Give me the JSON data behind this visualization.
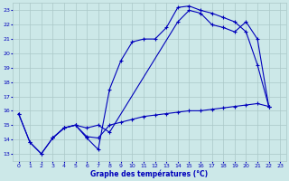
{
  "title": "Graphe des températures (°C)",
  "bg_color": "#cce8e8",
  "grid_color": "#aac8c8",
  "line_color": "#0000bb",
  "xlim": [
    -0.5,
    23.5
  ],
  "ylim": [
    12.5,
    23.5
  ],
  "xticks": [
    0,
    1,
    2,
    3,
    4,
    5,
    6,
    7,
    8,
    9,
    10,
    11,
    12,
    13,
    14,
    15,
    16,
    17,
    18,
    19,
    20,
    21,
    22,
    23
  ],
  "yticks": [
    13,
    14,
    15,
    16,
    17,
    18,
    19,
    20,
    21,
    22,
    23
  ],
  "curve1_x": [
    0,
    1,
    2,
    3,
    4,
    5,
    6,
    7,
    8,
    9,
    10,
    11,
    12,
    13,
    14,
    15,
    16,
    17,
    18,
    19,
    20,
    21,
    22
  ],
  "curve1_y": [
    15.8,
    13.8,
    13.0,
    14.1,
    14.8,
    15.0,
    14.1,
    13.3,
    17.5,
    19.5,
    20.8,
    21.0,
    21.0,
    21.8,
    23.2,
    23.3,
    23.0,
    22.8,
    22.5,
    22.2,
    21.5,
    19.2,
    16.3
  ],
  "curve2_x": [
    0,
    1,
    2,
    3,
    4,
    5,
    6,
    7,
    8,
    9,
    10,
    11,
    12,
    13,
    14,
    15,
    16,
    17,
    18,
    19,
    20,
    21,
    22
  ],
  "curve2_y": [
    15.8,
    13.8,
    13.0,
    14.1,
    14.8,
    15.0,
    14.2,
    14.1,
    15.0,
    15.2,
    15.4,
    15.6,
    15.7,
    15.8,
    15.9,
    16.0,
    16.0,
    16.1,
    16.2,
    16.3,
    16.4,
    16.5,
    16.3
  ],
  "curve3_x": [
    3,
    4,
    5,
    6,
    7,
    8,
    14,
    15,
    16,
    17,
    18,
    19,
    20,
    21,
    22
  ],
  "curve3_y": [
    14.1,
    14.8,
    15.0,
    14.8,
    15.0,
    14.5,
    22.2,
    23.0,
    22.8,
    22.0,
    21.8,
    21.5,
    22.2,
    21.0,
    16.3
  ]
}
